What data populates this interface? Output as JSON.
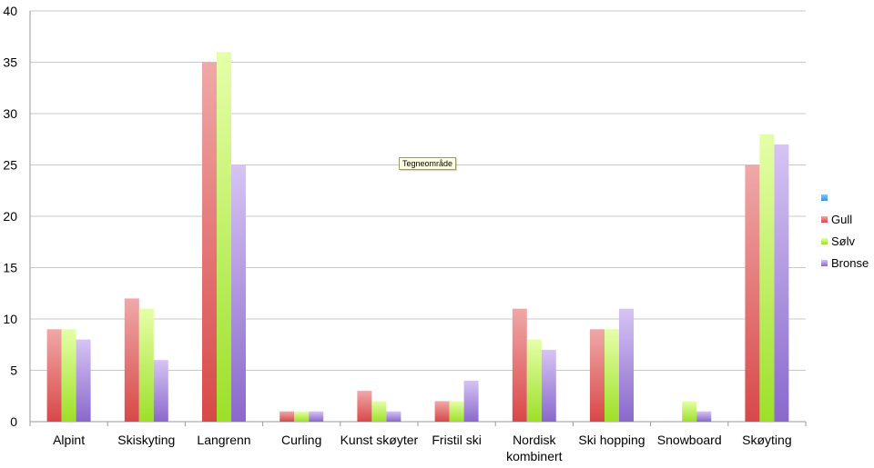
{
  "chart_data": {
    "type": "bar",
    "categories": [
      [
        "Alpint"
      ],
      [
        "Skiskyting"
      ],
      [
        "Langrenn"
      ],
      [
        "Curling"
      ],
      [
        "Kunst skøyter"
      ],
      [
        "Fristil ski"
      ],
      [
        "Nordisk",
        "kombinert"
      ],
      [
        "Ski hopping"
      ],
      [
        "Snowboard"
      ],
      [
        "Skøyting"
      ]
    ],
    "series": [
      {
        "name": "Gull",
        "values": [
          9,
          12,
          35,
          1,
          3,
          2,
          11,
          9,
          0,
          25
        ]
      },
      {
        "name": "Sølv",
        "values": [
          9,
          11,
          36,
          1,
          2,
          2,
          8,
          9,
          2,
          28
        ]
      },
      {
        "name": "Bronse",
        "values": [
          8,
          6,
          25,
          1,
          1,
          4,
          7,
          11,
          1,
          27
        ]
      }
    ],
    "legend_extra_blank_entry": true,
    "ylim": [
      0,
      40
    ],
    "yticks": [
      0,
      5,
      10,
      15,
      20,
      25,
      30,
      35,
      40
    ],
    "grid": true,
    "legend_position": "right",
    "title": "",
    "xlabel": "",
    "ylabel": ""
  },
  "colors": {
    "Gull": [
      "#f0a8a8",
      "#d84848"
    ],
    "Sølv": [
      "#e6ffa8",
      "#9ce028"
    ],
    "Bronse": [
      "#d6c4f4",
      "#8a68cc"
    ],
    "blank": [
      "#8ccaf0",
      "#3a8ed8"
    ],
    "grid": "#c8c8c8"
  },
  "tooltip": "Tegneområde"
}
